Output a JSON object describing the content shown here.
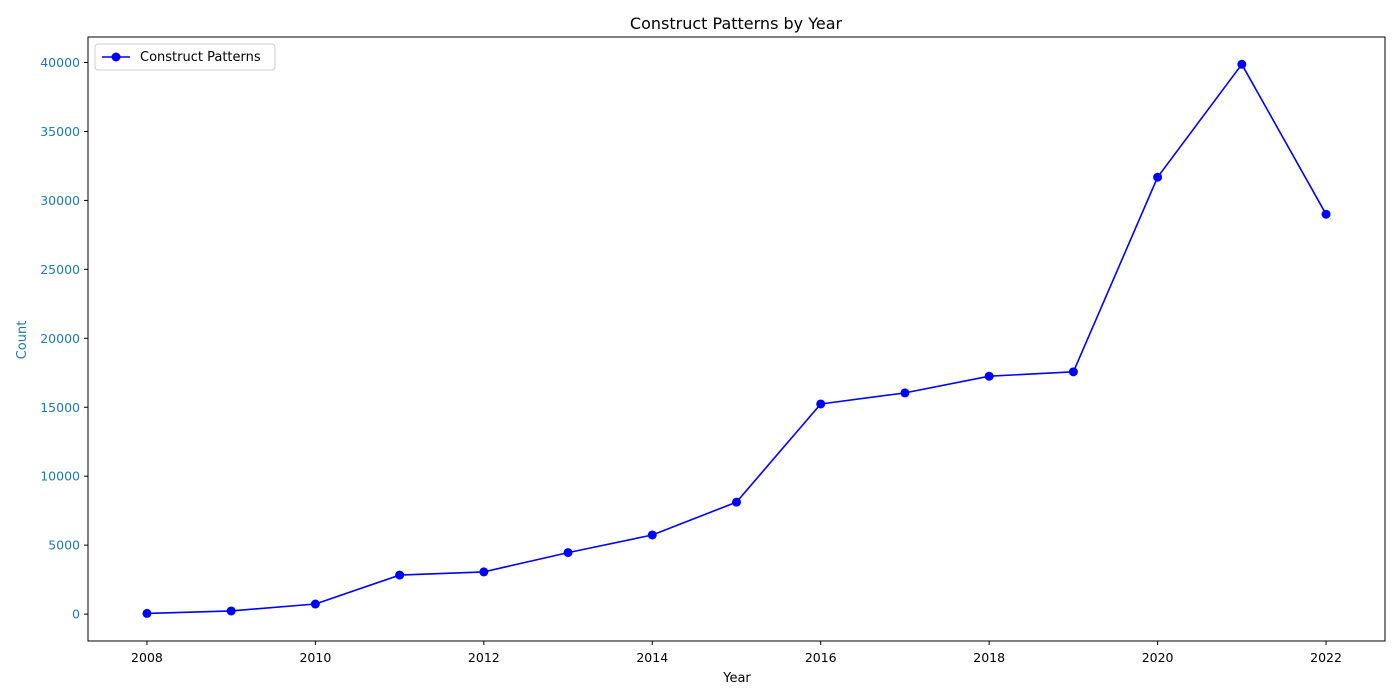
{
  "chart_data": {
    "type": "line",
    "title": "Construct Patterns by Year",
    "xlabel": "Year",
    "ylabel": "Count",
    "x": [
      2008,
      2009,
      2010,
      2011,
      2012,
      2013,
      2014,
      2015,
      2016,
      2017,
      2018,
      2019,
      2020,
      2021,
      2022
    ],
    "series": [
      {
        "name": "Construct Patterns",
        "values": [
          50,
          230,
          730,
          2830,
          3060,
          4460,
          5740,
          8120,
          15240,
          16040,
          17250,
          17570,
          31680,
          39870,
          29000
        ],
        "color": "#0000ff",
        "marker": "circle"
      }
    ],
    "xlim": [
      2007.3,
      2022.7
    ],
    "ylim": [
      -1950,
      41850
    ],
    "xticks": [
      2008,
      2010,
      2012,
      2014,
      2016,
      2018,
      2020,
      2022
    ],
    "yticks": [
      0,
      5000,
      10000,
      15000,
      20000,
      25000,
      30000,
      35000,
      40000
    ],
    "grid": false,
    "legend_position": "top-left",
    "colors": {
      "line": "#0000ff",
      "y_axis_text": "#1f77b4",
      "x_axis_text": "#000000",
      "frame": "#000000"
    }
  }
}
